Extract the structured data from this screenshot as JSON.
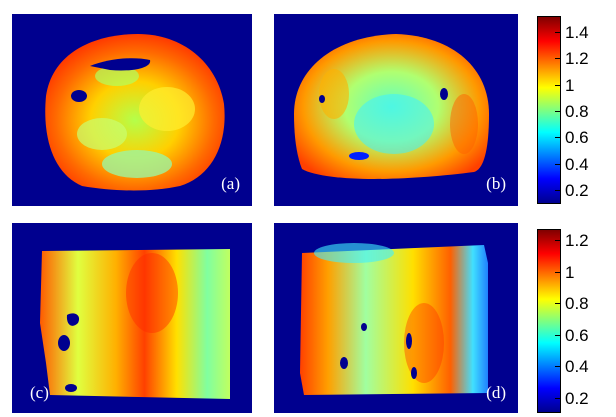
{
  "panels": [
    {
      "label": "(a)"
    },
    {
      "label": "(b)"
    },
    {
      "label": "(c)"
    },
    {
      "label": "(d)"
    }
  ],
  "colorbars": [
    {
      "ticks": [
        "1.4",
        "1.2",
        "1",
        "0.8",
        "0.6",
        "0.4",
        "0.2"
      ]
    },
    {
      "ticks": [
        "1.2",
        "1",
        "0.8",
        "0.6",
        "0.4",
        "0.2"
      ]
    }
  ],
  "colors": {
    "background": "#00008f",
    "jet_dark_red": "#800000",
    "jet_red": "#ff0000",
    "jet_orange": "#ff8000",
    "jet_yellow": "#ffff00",
    "jet_cyan": "#00ffff",
    "jet_blue": "#0000ff",
    "jet_dark_blue": "#00008f"
  },
  "colormap": "jet"
}
